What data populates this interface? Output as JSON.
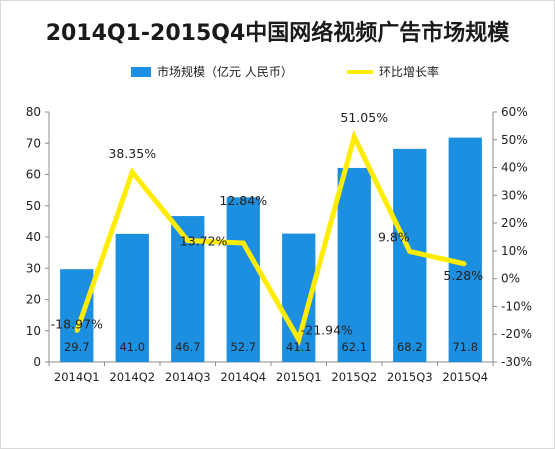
{
  "chart_data": {
    "type": "bar",
    "title": "2014Q1-2015Q4中国网络视频广告市场规模",
    "categories": [
      "2014Q1",
      "2014Q2",
      "2014Q3",
      "2014Q4",
      "2015Q1",
      "2015Q2",
      "2015Q3",
      "2015Q4"
    ],
    "series": [
      {
        "name": "市场规模（亿元 人民币）",
        "type": "bar",
        "axis": "left",
        "color": "#1d8fe0",
        "values": [
          29.7,
          41.0,
          46.7,
          52.7,
          41.1,
          62.1,
          68.2,
          71.8
        ],
        "labels": [
          "29.7",
          "41.0",
          "46.7",
          "52.7",
          "41.1",
          "62.1",
          "68.2",
          "71.8"
        ]
      },
      {
        "name": "环比增长率",
        "type": "line",
        "axis": "right",
        "color": "#ffec00",
        "values": [
          -18.97,
          38.35,
          13.72,
          12.84,
          -21.94,
          51.05,
          9.8,
          5.28
        ],
        "labels": [
          "-18.97%",
          "38.35%",
          "13.72%",
          "12.84%",
          "-21.94%",
          "51.05%",
          "9.8%",
          "5.28%"
        ]
      }
    ],
    "y_left": {
      "min": 0,
      "max": 80,
      "ticks": [
        "0",
        "10",
        "20",
        "30",
        "40",
        "50",
        "60",
        "70",
        "80"
      ]
    },
    "y_right": {
      "min": -30,
      "max": 60,
      "ticks": [
        "-30%",
        "-20%",
        "-10%",
        "0%",
        "10%",
        "20%",
        "30%",
        "40%",
        "50%",
        "60%"
      ]
    },
    "grid": false,
    "legend_position": "top"
  }
}
